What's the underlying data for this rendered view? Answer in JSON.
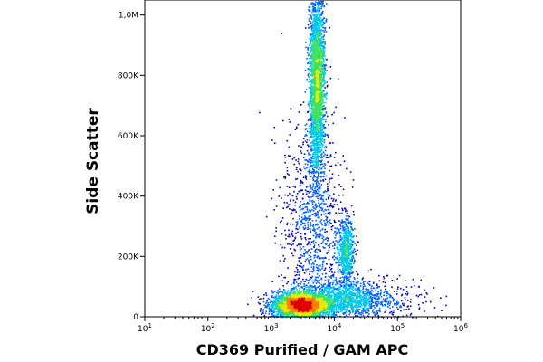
{
  "chart_data": {
    "type": "scatter",
    "subtype": "flow-cytometry-density-dot-plot",
    "title": "",
    "xlabel": "CD369 Purified / GAM APC",
    "ylabel": "Side Scatter",
    "x_scale": "log",
    "xlim": [
      10,
      1000000
    ],
    "ylim": [
      0,
      1050000
    ],
    "x_ticks": [
      {
        "value": 10,
        "base": "10",
        "exp": "1"
      },
      {
        "value": 100,
        "base": "10",
        "exp": "2"
      },
      {
        "value": 1000,
        "base": "10",
        "exp": "3"
      },
      {
        "value": 10000,
        "base": "10",
        "exp": "4"
      },
      {
        "value": 100000,
        "base": "10",
        "exp": "5"
      },
      {
        "value": 1000000,
        "base": "10",
        "exp": "6"
      }
    ],
    "y_ticks": [
      {
        "value": 0,
        "label": "0"
      },
      {
        "value": 200000,
        "label": "200K"
      },
      {
        "value": 400000,
        "label": "400K"
      },
      {
        "value": 600000,
        "label": "600K"
      },
      {
        "value": 800000,
        "label": "800K"
      },
      {
        "value": 1000000,
        "label": "1,0M"
      }
    ],
    "grid": false,
    "legend": "none",
    "density_colors": [
      "#0000c8",
      "#0060ff",
      "#00c8e8",
      "#40e060",
      "#e8e800",
      "#ff8000",
      "#e00000"
    ],
    "populations": [
      {
        "cx": 2800,
        "cy": 40000,
        "sx_log": 0.22,
        "sy": 22000,
        "weight": 0.34
      },
      {
        "cx": 5200,
        "cy": 780000,
        "sx_log": 0.06,
        "sy": 150000,
        "weight": 0.3
      },
      {
        "cx": 15000,
        "cy": 220000,
        "sx_log": 0.06,
        "sy": 55000,
        "weight": 0.07
      },
      {
        "cx": 4500,
        "cy": 300000,
        "sx_log": 0.25,
        "sy": 180000,
        "weight": 0.12
      },
      {
        "cx": 12000,
        "cy": 60000,
        "sx_log": 0.35,
        "sy": 30000,
        "weight": 0.12
      },
      {
        "cx": 30000,
        "cy": 50000,
        "sx_log": 0.5,
        "sy": 40000,
        "weight": 0.05
      }
    ]
  }
}
